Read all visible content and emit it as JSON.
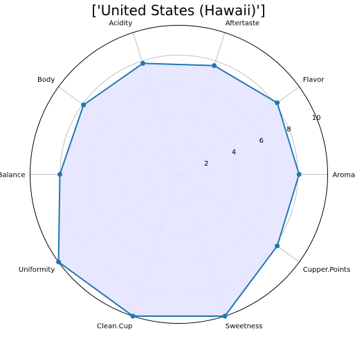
{
  "chart_data": {
    "type": "radar",
    "title": "['United States (Hawaii)']",
    "categories": [
      "Aroma",
      "Flavor",
      "Aftertaste",
      "Acidity",
      "Body",
      "Balance",
      "Uniformity",
      "Clean.Cup",
      "Sweetness",
      "Cupper.Points"
    ],
    "series": [
      {
        "values": [
          8.08,
          8.17,
          7.67,
          7.83,
          7.92,
          8.0,
          10.0,
          10.0,
          10.0,
          8.17
        ]
      }
    ],
    "rlim": [
      0,
      10
    ],
    "rticks": [
      2,
      4,
      6,
      8,
      10
    ],
    "grid": true,
    "colors": {
      "line": "#1f77b4",
      "fill": "#e4e4ff",
      "grid": "#b0b0b0",
      "frame": "#000000"
    }
  }
}
